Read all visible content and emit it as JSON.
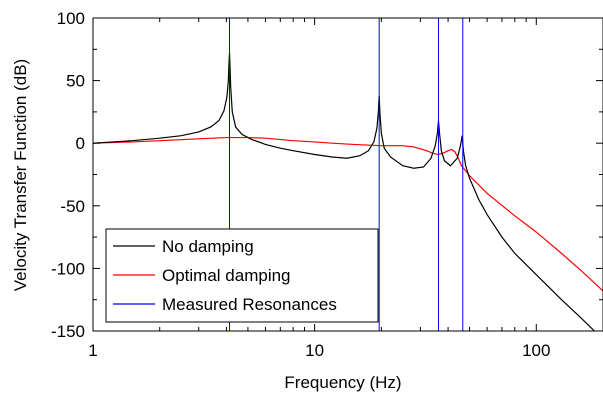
{
  "chart_data": {
    "type": "line",
    "title": "",
    "xlabel": "Frequency (Hz)",
    "ylabel": "Velocity Transfer Function (dB)",
    "x_scale": "log",
    "xlim": [
      1,
      200
    ],
    "ylim": [
      -150,
      100
    ],
    "x_ticks": [
      1,
      10,
      100
    ],
    "x_tick_labels": [
      "1",
      "10",
      "100"
    ],
    "y_ticks": [
      100,
      50,
      0,
      -50,
      -100,
      -150
    ],
    "y_tick_labels": [
      "100",
      "50",
      "0",
      "-50",
      "-100",
      "-150"
    ],
    "grid": false,
    "legend_position": "bottom-left",
    "series": [
      {
        "name": "No damping",
        "color": "#000000",
        "points": [
          [
            1.0,
            0
          ],
          [
            1.5,
            2
          ],
          [
            2.0,
            4
          ],
          [
            2.5,
            6
          ],
          [
            3.0,
            9
          ],
          [
            3.4,
            13
          ],
          [
            3.7,
            18
          ],
          [
            3.9,
            26
          ],
          [
            4.02,
            37
          ],
          [
            4.08,
            50
          ],
          [
            4.11,
            65
          ],
          [
            4.13,
            72
          ],
          [
            4.15,
            62
          ],
          [
            4.18,
            45
          ],
          [
            4.25,
            25
          ],
          [
            4.4,
            13
          ],
          [
            4.7,
            7
          ],
          [
            5.2,
            3
          ],
          [
            6,
            -1
          ],
          [
            7,
            -4
          ],
          [
            8,
            -6
          ],
          [
            10,
            -9
          ],
          [
            12,
            -11
          ],
          [
            14,
            -12
          ],
          [
            16,
            -10
          ],
          [
            17.5,
            -6
          ],
          [
            18.5,
            1
          ],
          [
            19.1,
            12
          ],
          [
            19.4,
            26
          ],
          [
            19.55,
            38
          ],
          [
            19.7,
            24
          ],
          [
            20.0,
            8
          ],
          [
            20.6,
            -4
          ],
          [
            22,
            -11
          ],
          [
            25,
            -18
          ],
          [
            28,
            -20
          ],
          [
            31,
            -19
          ],
          [
            33.5,
            -12
          ],
          [
            35,
            -2
          ],
          [
            35.8,
            8
          ],
          [
            36.2,
            18
          ],
          [
            36.6,
            8
          ],
          [
            37.3,
            -6
          ],
          [
            38.5,
            -14
          ],
          [
            41,
            -18
          ],
          [
            44,
            -12
          ],
          [
            45.5,
            -2
          ],
          [
            46.3,
            6
          ],
          [
            46.9,
            -6
          ],
          [
            48,
            -18
          ],
          [
            50,
            -28
          ],
          [
            55,
            -45
          ],
          [
            60,
            -57
          ],
          [
            70,
            -75
          ],
          [
            80,
            -88
          ],
          [
            100,
            -105
          ],
          [
            130,
            -125
          ],
          [
            160,
            -140
          ],
          [
            183,
            -150
          ]
        ]
      },
      {
        "name": "Optimal damping",
        "color": "#ff0000",
        "points": [
          [
            1.0,
            0
          ],
          [
            1.5,
            1
          ],
          [
            2.0,
            2
          ],
          [
            3.0,
            3.5
          ],
          [
            4.0,
            4.5
          ],
          [
            5.0,
            4.5
          ],
          [
            6,
            4
          ],
          [
            8,
            2
          ],
          [
            10,
            1
          ],
          [
            12,
            0
          ],
          [
            15,
            -1
          ],
          [
            20,
            -2
          ],
          [
            25,
            -2
          ],
          [
            28,
            -3
          ],
          [
            30,
            -4.5
          ],
          [
            32,
            -6
          ],
          [
            34,
            -8
          ],
          [
            36,
            -9
          ],
          [
            38,
            -8
          ],
          [
            40,
            -6
          ],
          [
            41.5,
            -5
          ],
          [
            43,
            -7
          ],
          [
            44.5,
            -12
          ],
          [
            46,
            -18
          ],
          [
            50,
            -26
          ],
          [
            60,
            -40
          ],
          [
            80,
            -58
          ],
          [
            100,
            -71
          ],
          [
            130,
            -88
          ],
          [
            160,
            -102
          ],
          [
            200,
            -118
          ]
        ]
      },
      {
        "name": "Measured Resonances",
        "color": "#0000ff",
        "vertical_lines": [
          4.13,
          19.55,
          36.2,
          46.6
        ]
      }
    ]
  }
}
